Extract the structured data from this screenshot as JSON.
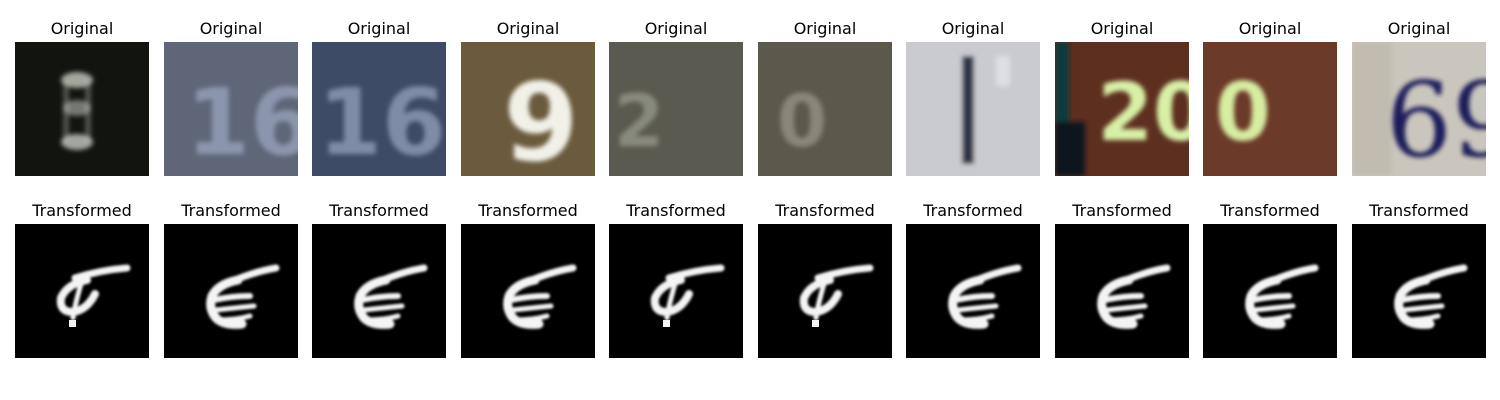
{
  "figure": {
    "original_label": "Original",
    "transformed_label": "Transformed",
    "pairs": [
      {
        "original_text": "",
        "original_colors": {
          "bg": "#12140f",
          "fg": "#c7cbc0"
        },
        "transformed_shape": "tau"
      },
      {
        "original_text": "16",
        "original_colors": {
          "bg": "#5f6678",
          "fg": "#8b95ad"
        },
        "transformed_shape": "epsilon"
      },
      {
        "original_text": "16",
        "original_colors": {
          "bg": "#3d4b66",
          "fg": "#7f8ca6"
        },
        "transformed_shape": "epsilon"
      },
      {
        "original_text": "9",
        "original_colors": {
          "bg": "#6b5b3c",
          "fg": "#f1f1e8"
        },
        "transformed_shape": "epsilon"
      },
      {
        "original_text": "2",
        "original_colors": {
          "bg": "#5a5a50",
          "fg": "#898a7e"
        },
        "transformed_shape": "tau"
      },
      {
        "original_text": "0",
        "original_colors": {
          "bg": "#5b584c",
          "fg": "#8a8679"
        },
        "transformed_shape": "tau"
      },
      {
        "original_text": "1",
        "original_colors": {
          "bg": "#c9cbd0",
          "fg": "#2e3446"
        },
        "transformed_shape": "epsilon"
      },
      {
        "original_text": "20",
        "original_colors": {
          "bg": "#5d2f1f",
          "fg": "#d8f0a6"
        },
        "transformed_shape": "epsilon"
      },
      {
        "original_text": "0",
        "original_colors": {
          "bg": "#6b3a28",
          "fg": "#d7eda0"
        },
        "transformed_shape": "epsilon"
      },
      {
        "original_text": "69",
        "original_colors": {
          "bg": "#cbc6bd",
          "fg": "#1b1f5a"
        },
        "transformed_shape": "epsilon"
      }
    ]
  }
}
